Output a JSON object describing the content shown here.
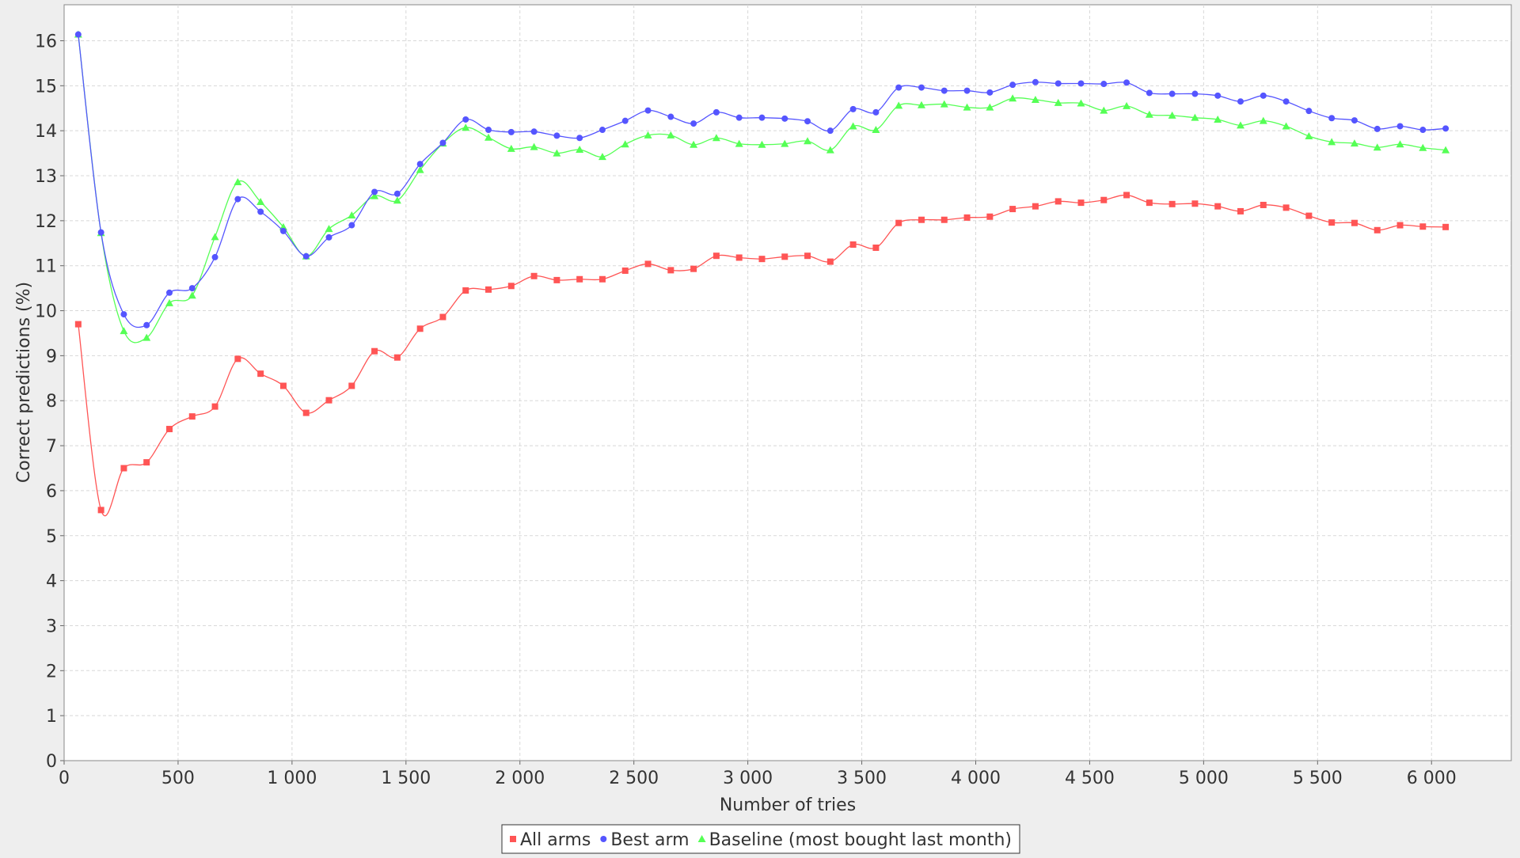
{
  "chart_data": {
    "type": "line",
    "xlabel": "Number of tries",
    "ylabel": "Correct predictions (%)",
    "xlim": [
      0,
      6350
    ],
    "ylim": [
      0,
      16.8
    ],
    "x_ticks": [
      0,
      500,
      1000,
      1500,
      2000,
      2500,
      3000,
      3500,
      4000,
      4500,
      5000,
      5500,
      6000
    ],
    "x_tick_labels": [
      "0",
      "500",
      "1 000",
      "1 500",
      "2 000",
      "2 500",
      "3 000",
      "3 500",
      "4 000",
      "4 500",
      "5 000",
      "5 500",
      "6 000"
    ],
    "y_ticks": [
      0,
      1,
      2,
      3,
      4,
      5,
      6,
      7,
      8,
      9,
      10,
      11,
      12,
      13,
      14,
      15,
      16
    ],
    "y_tick_labels": [
      "0",
      "1",
      "2",
      "3",
      "4",
      "5",
      "6",
      "7",
      "8",
      "9",
      "10",
      "11",
      "12",
      "13",
      "14",
      "15",
      "16"
    ],
    "grid": true,
    "legend_position": "bottom",
    "x": [
      62,
      162,
      262,
      362,
      462,
      562,
      662,
      762,
      862,
      962,
      1062,
      1162,
      1262,
      1362,
      1462,
      1562,
      1662,
      1762,
      1862,
      1962,
      2062,
      2162,
      2262,
      2362,
      2462,
      2562,
      2662,
      2762,
      2862,
      2962,
      3062,
      3162,
      3262,
      3362,
      3462,
      3562,
      3662,
      3762,
      3862,
      3962,
      4062,
      4162,
      4262,
      4362,
      4462,
      4562,
      4662,
      4762,
      4862,
      4962,
      5062,
      5162,
      5262,
      5362,
      5462,
      5562,
      5662,
      5762,
      5862,
      5962,
      6062
    ],
    "series": [
      {
        "name": "All arms",
        "color": "#ff5555",
        "marker": "square",
        "values": [
          9.7,
          5.57,
          6.5,
          6.63,
          7.37,
          7.65,
          7.87,
          8.93,
          8.6,
          8.33,
          7.73,
          8.01,
          8.33,
          9.1,
          8.96,
          9.6,
          9.86,
          10.45,
          10.47,
          10.55,
          10.77,
          10.68,
          10.7,
          10.7,
          10.89,
          11.04,
          10.9,
          10.93,
          11.22,
          11.18,
          11.15,
          11.2,
          11.22,
          11.09,
          11.47,
          11.4,
          11.95,
          12.02,
          12.02,
          12.07,
          12.09,
          12.26,
          12.32,
          12.43,
          12.4,
          12.46,
          12.57,
          12.4,
          12.37,
          12.38,
          12.32,
          12.21,
          12.35,
          12.29,
          12.11,
          11.96,
          11.95,
          11.79,
          11.9,
          11.87,
          11.86
        ]
      },
      {
        "name": "Best arm",
        "color": "#5555ff",
        "marker": "circle",
        "values": [
          16.14,
          11.74,
          9.92,
          9.68,
          10.4,
          10.5,
          11.19,
          12.48,
          12.2,
          11.77,
          11.21,
          11.63,
          11.9,
          12.64,
          12.6,
          13.26,
          13.73,
          14.25,
          14.02,
          13.97,
          13.98,
          13.89,
          13.84,
          14.02,
          14.22,
          14.45,
          14.31,
          14.16,
          14.41,
          14.29,
          14.29,
          14.27,
          14.21,
          14.0,
          14.48,
          14.41,
          14.96,
          14.96,
          14.89,
          14.89,
          14.85,
          15.02,
          15.08,
          15.05,
          15.05,
          15.04,
          15.07,
          14.84,
          14.82,
          14.82,
          14.78,
          14.65,
          14.78,
          14.65,
          14.44,
          14.28,
          14.23,
          14.04,
          14.1,
          14.02,
          14.05
        ]
      },
      {
        "name": "Baseline (most bought last month)",
        "color": "#55ff55",
        "marker": "triangle",
        "values": [
          16.14,
          11.73,
          9.55,
          9.4,
          10.17,
          10.34,
          11.64,
          12.86,
          12.42,
          11.86,
          11.21,
          11.82,
          12.12,
          12.55,
          12.45,
          13.13,
          13.72,
          14.07,
          13.85,
          13.6,
          13.64,
          13.5,
          13.58,
          13.42,
          13.7,
          13.9,
          13.9,
          13.69,
          13.84,
          13.71,
          13.69,
          13.71,
          13.77,
          13.57,
          14.1,
          14.02,
          14.56,
          14.57,
          14.59,
          14.52,
          14.52,
          14.72,
          14.69,
          14.62,
          14.61,
          14.45,
          14.55,
          14.36,
          14.34,
          14.29,
          14.25,
          14.12,
          14.22,
          14.1,
          13.88,
          13.75,
          13.72,
          13.63,
          13.7,
          13.62,
          13.57
        ]
      }
    ]
  }
}
